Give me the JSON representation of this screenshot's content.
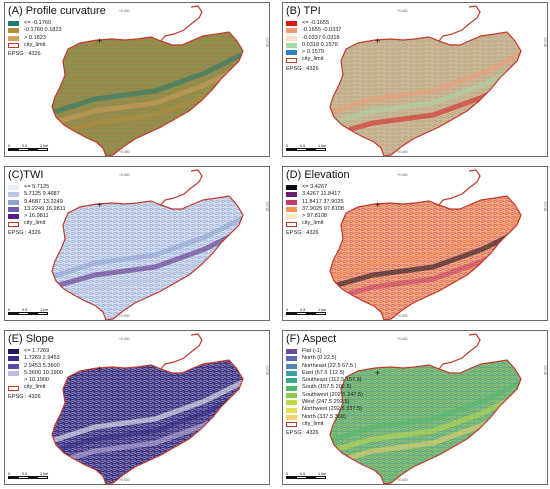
{
  "coord_labels": {
    "x": "+0.400",
    "y": "35.000"
  },
  "panels": [
    {
      "title": "(A) Profile curvature",
      "legend": [
        {
          "label": "<= -0.1760",
          "color": "#1f7a73"
        },
        {
          "label": "-0.1760   0.1823",
          "color": "#b58c3a"
        },
        {
          "label": "> 0.1823",
          "color": "#d3a05a"
        },
        {
          "label": "city_limit",
          "color": "#c0392b"
        }
      ],
      "epsg": "EPSG : 4326",
      "map_fill": "#a88a42",
      "map_texture": "#5c8f65",
      "scale": [
        "0",
        "0.5",
        "1 km"
      ]
    },
    {
      "title": "(B) TPI",
      "legend": [
        {
          "label": "<= -0.1655",
          "color": "#d7191c"
        },
        {
          "label": "-0.1655   -0.0337",
          "color": "#f29a74"
        },
        {
          "label": "-0.0337   0.0318",
          "color": "#fbe3c4"
        },
        {
          "label": "0.0318   0.1579",
          "color": "#a8d7a4"
        },
        {
          "label": "> 0.1579",
          "color": "#2b83ba"
        },
        {
          "label": "city_limit",
          "color": "#c0392b"
        }
      ],
      "epsg": "EPSG : 4326",
      "map_fill": "#d7b9a5",
      "map_texture": "#9aa35b",
      "scale": [
        "0",
        "0.5",
        "1 km"
      ]
    },
    {
      "title": "(C)TWI",
      "legend": [
        {
          "label": "<= 5.7125",
          "color": "#e8eef7"
        },
        {
          "label": "5.7125   9.4687",
          "color": "#b8c9e6"
        },
        {
          "label": "9.4687   13.2249",
          "color": "#8e9fd0"
        },
        {
          "label": "13.2249   16.9811",
          "color": "#6b5db3"
        },
        {
          "label": "> 16.9811",
          "color": "#5a1e82"
        },
        {
          "label": "city_limit",
          "color": "#c0392b"
        }
      ],
      "epsg": "EPSG : 4326",
      "map_fill": "#dbe6f3",
      "map_texture": "#7b8fc6",
      "scale": [
        "0",
        "0.5",
        "1 km"
      ]
    },
    {
      "title": "(D) Elevation",
      "legend": [
        {
          "label": "<= 3.4267",
          "color": "#0d0a1f"
        },
        {
          "label": "3.4267   11.8417",
          "color": "#6a1c6e"
        },
        {
          "label": "11.8417   37.9025",
          "color": "#c33a6a"
        },
        {
          "label": "37.9025   97.8108",
          "color": "#f6925c"
        },
        {
          "label": "> 97.8108",
          "color": "#fde7c0"
        },
        {
          "label": "city_limit",
          "color": "#c0392b"
        }
      ],
      "epsg": "EPSG : 4326",
      "map_fill": "#f7b57a",
      "map_texture": "#c33a6a",
      "scale": [
        "0",
        "0.5",
        "1 km"
      ]
    },
    {
      "title": "(E) Slope",
      "legend": [
        {
          "label": "<= 1.7269",
          "color": "#1b1a52"
        },
        {
          "label": "1.7269   2.9453",
          "color": "#342b83"
        },
        {
          "label": "2.9453   5.3600",
          "color": "#5c4ba8"
        },
        {
          "label": "5.3600   10.1900",
          "color": "#c6b9e0"
        },
        {
          "label": "> 10.1900",
          "color": "#ffffff"
        },
        {
          "label": "city_limit",
          "color": "#c0392b"
        }
      ],
      "epsg": "EPSG : 4326",
      "map_fill": "#2e2778",
      "map_texture": "#c9bfe3",
      "scale": [
        "0",
        "0.5",
        "1 km"
      ]
    },
    {
      "title": "(F) Aspect",
      "legend": [
        {
          "label": "Flat (-1)",
          "color": "#6a4c93"
        },
        {
          "label": "North (0   22.5)",
          "color": "#5a6bb0"
        },
        {
          "label": "Northeast (22.5   67.5 )",
          "color": "#4f87b8"
        },
        {
          "label": "East (67.5   112.5)",
          "color": "#3aa0a6"
        },
        {
          "label": "Southeast (112.5   157.5)",
          "color": "#35a989"
        },
        {
          "label": "South (157.5   202.5)",
          "color": "#4fb86a"
        },
        {
          "label": "Southwest (202.5   247.5)",
          "color": "#8ccb4c"
        },
        {
          "label": "West (247.5   292.5)",
          "color": "#c2d94a"
        },
        {
          "label": "Northwest (292.5   337.5)",
          "color": "#e3e24c"
        },
        {
          "label": "North (337.5   360)",
          "color": "#f3d46b"
        },
        {
          "label": "city_limit",
          "color": "#c0392b"
        }
      ],
      "epsg": "EPSG : 4326",
      "map_fill": "#5aa88f",
      "map_texture": "#c2d94a",
      "scale": [
        "0",
        "0.5",
        "1 km"
      ]
    }
  ]
}
